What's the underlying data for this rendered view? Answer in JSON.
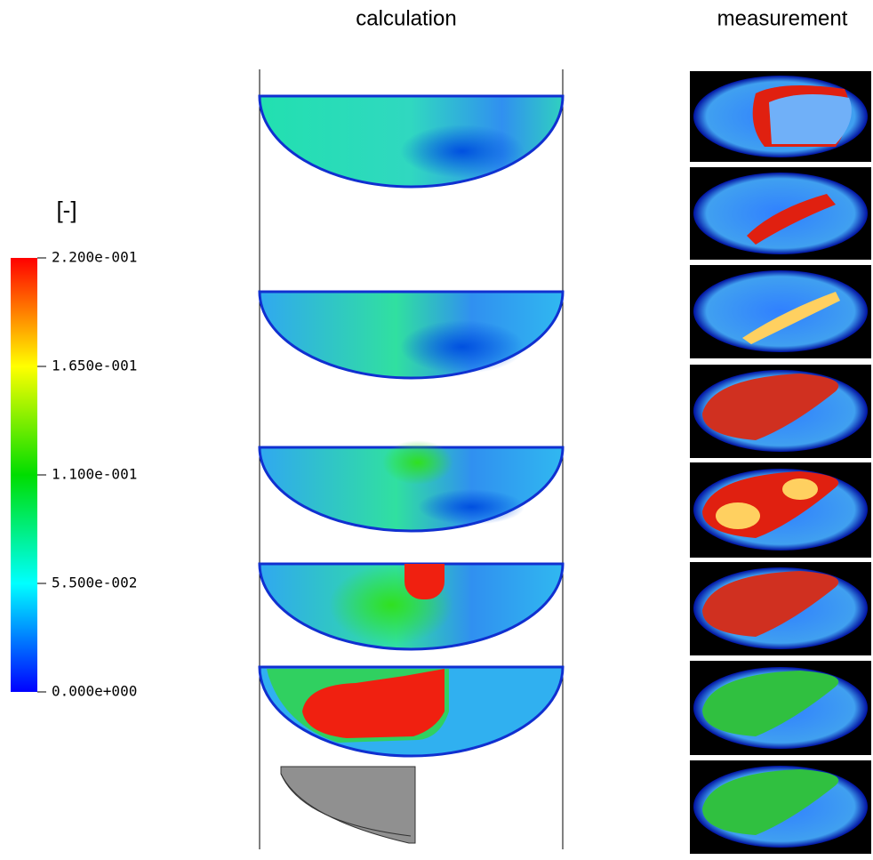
{
  "headers": {
    "calculation": "calculation",
    "measurement": "measurement"
  },
  "colorbar": {
    "unit": "[-]",
    "lim": [
      0,
      0.22
    ],
    "ticks": [
      {
        "value": 0.22,
        "label": "2.200e-001"
      },
      {
        "value": 0.165,
        "label": "1.650e-001"
      },
      {
        "value": 0.11,
        "label": "1.100e-001"
      },
      {
        "value": 0.055,
        "label": "5.500e-002"
      },
      {
        "value": 0,
        "label": "0.000e+000"
      }
    ]
  }
}
